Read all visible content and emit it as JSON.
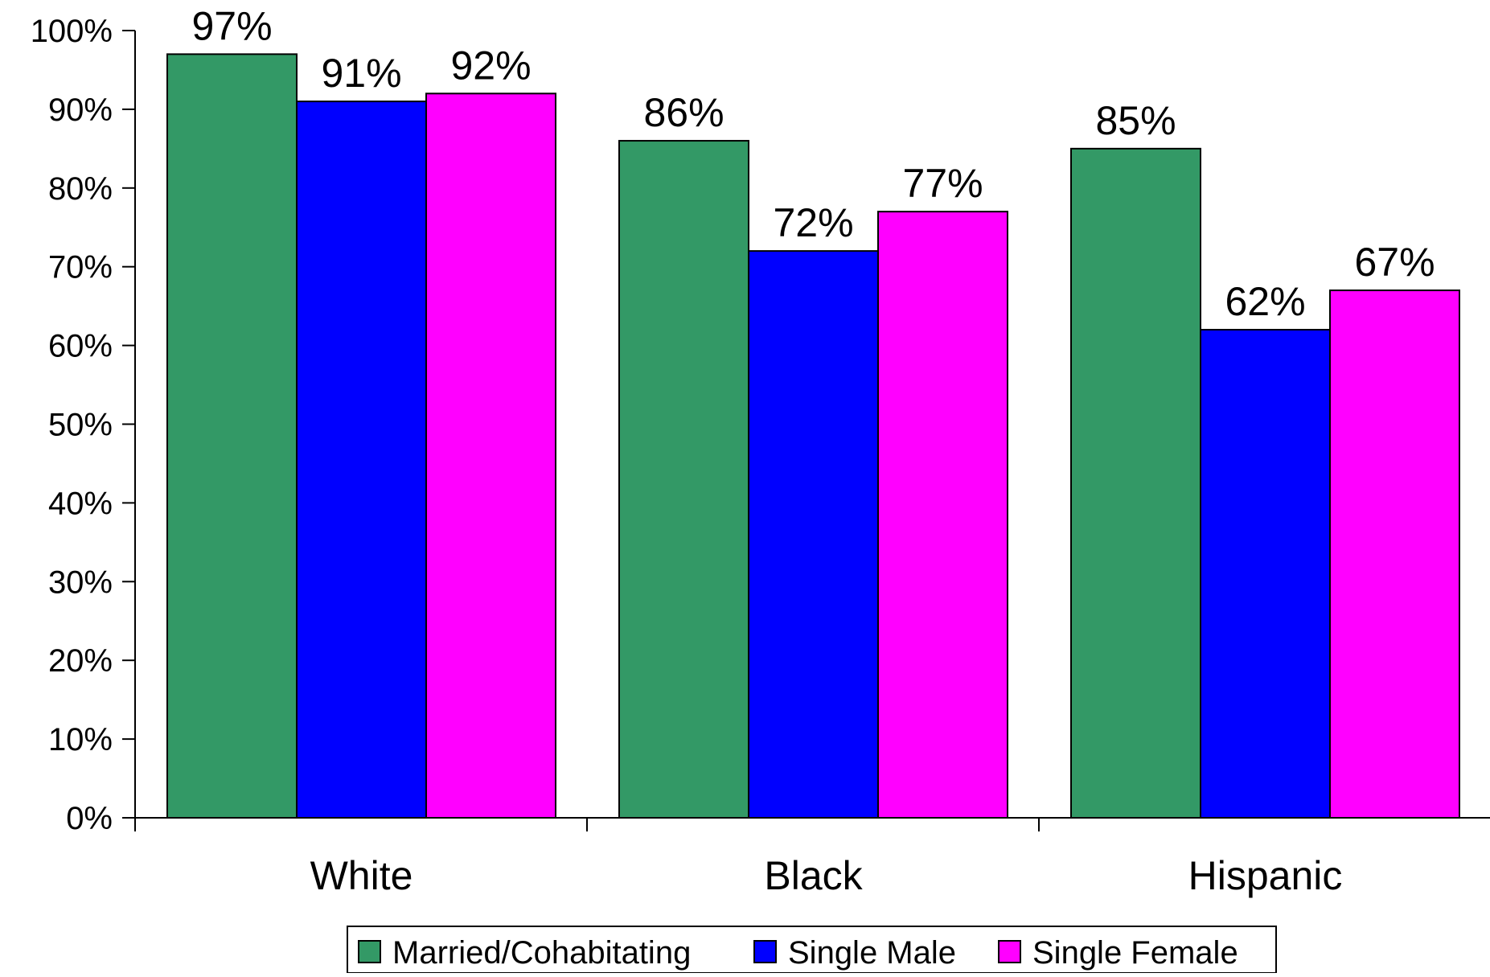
{
  "chart_data": {
    "type": "bar",
    "title": "",
    "xlabel": "",
    "ylabel": "",
    "categories": [
      "White",
      "Black",
      "Hispanic"
    ],
    "series": [
      {
        "name": "Married/Cohabitating",
        "color": "#339966",
        "values": [
          97,
          86,
          85
        ],
        "labels": [
          "97%",
          "86%",
          "85%"
        ]
      },
      {
        "name": "Single Male",
        "color": "#0000ff",
        "values": [
          91,
          72,
          62
        ],
        "labels": [
          "91%",
          "72%",
          "62%"
        ]
      },
      {
        "name": "Single Female",
        "color": "#ff00ff",
        "values": [
          92,
          77,
          67
        ],
        "labels": [
          "92%",
          "77%",
          "67%"
        ]
      }
    ],
    "ylim": [
      0,
      100
    ],
    "yticks": [
      0,
      10,
      20,
      30,
      40,
      50,
      60,
      70,
      80,
      90,
      100
    ],
    "ytick_labels": [
      "0%",
      "10%",
      "20%",
      "30%",
      "40%",
      "50%",
      "60%",
      "70%",
      "80%",
      "90%",
      "100%"
    ],
    "grid": false,
    "legend_position": "bottom-center"
  }
}
